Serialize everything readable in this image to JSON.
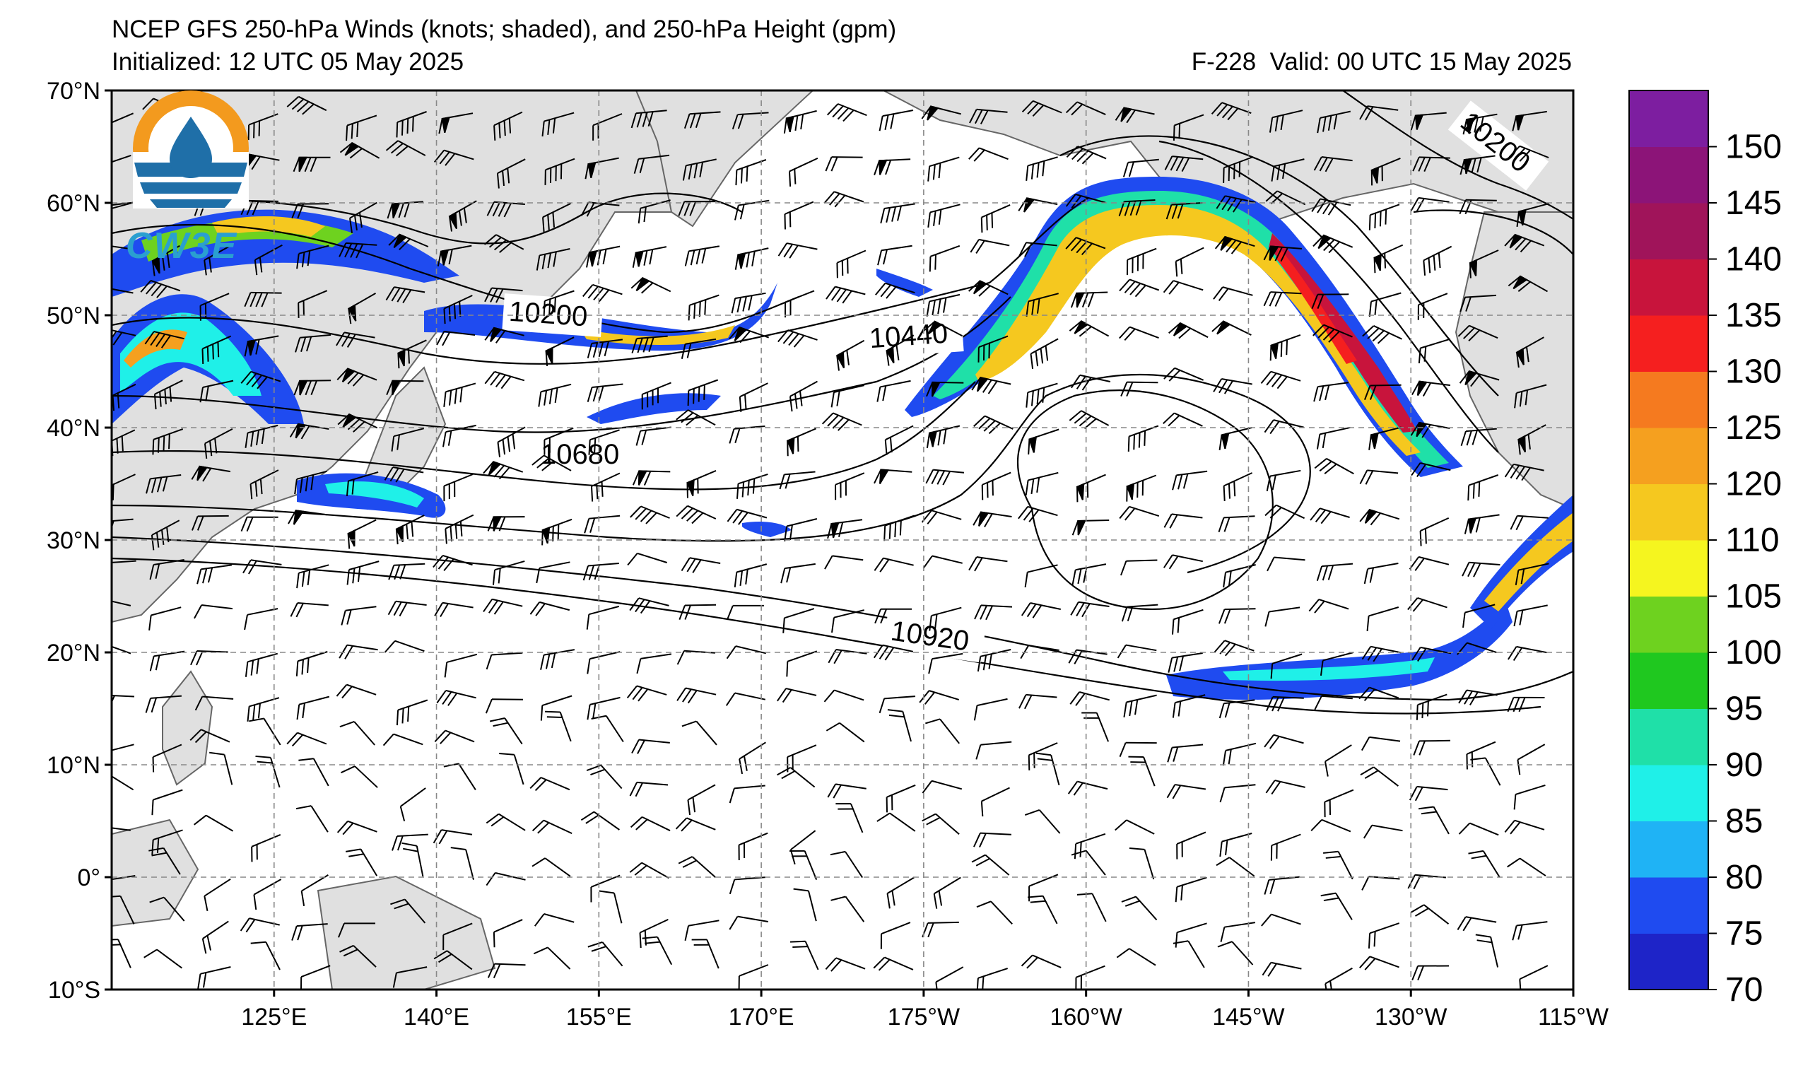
{
  "header": {
    "title": "NCEP GFS 250-hPa Winds (knots; shaded), and 250-hPa Height (gpm)",
    "initialized": "Initialized: 12 UTC 05 May 2025",
    "forecast_hour": "F-228",
    "valid": "Valid: 00 UTC 15 May 2025"
  },
  "logo": {
    "text": "CW3E",
    "icon": "water-drop-logo-icon"
  },
  "map": {
    "projection": "cylindrical",
    "lon_range": [
      110,
      245
    ],
    "lat_range": [
      -10,
      70
    ],
    "lon_ticks": [
      {
        "lon": 125,
        "label": "125°E"
      },
      {
        "lon": 140,
        "label": "140°E"
      },
      {
        "lon": 155,
        "label": "155°E"
      },
      {
        "lon": 170,
        "label": "170°E"
      },
      {
        "lon": 185,
        "label": "175°W"
      },
      {
        "lon": 200,
        "label": "160°W"
      },
      {
        "lon": 215,
        "label": "145°W"
      },
      {
        "lon": 230,
        "label": "130°W"
      },
      {
        "lon": 245,
        "label": "115°W"
      }
    ],
    "lat_ticks": [
      {
        "lat": 70,
        "label": "70°N"
      },
      {
        "lat": 60,
        "label": "60°N"
      },
      {
        "lat": 50,
        "label": "50°N"
      },
      {
        "lat": 40,
        "label": "40°N"
      },
      {
        "lat": 30,
        "label": "30°N"
      },
      {
        "lat": 20,
        "label": "20°N"
      },
      {
        "lat": 10,
        "label": "10°N"
      },
      {
        "lat": 0,
        "label": "0°"
      },
      {
        "lat": -10,
        "label": "10°S"
      }
    ],
    "contour_labels": [
      "10200",
      "10440",
      "10680",
      "10920",
      "10200"
    ],
    "gridlines": true,
    "land_color": "#e0e0e0",
    "coast_color": "#666666"
  },
  "colorbar": {
    "levels": [
      70,
      75,
      80,
      85,
      90,
      95,
      100,
      105,
      110,
      120,
      125,
      130,
      135,
      140,
      145,
      150
    ],
    "labels": [
      "70",
      "75",
      "80",
      "85",
      "90",
      "95",
      "100",
      "105",
      "110",
      "120",
      "125",
      "130",
      "135",
      "140",
      "145",
      "150"
    ],
    "colors": [
      "#1e24c8",
      "#1f4bf0",
      "#1fb3f5",
      "#1ff0e8",
      "#1fe0a8",
      "#1fc81f",
      "#6ed21f",
      "#f5f51f",
      "#f5c81f",
      "#f5a01f",
      "#f57a1f",
      "#f51f1f",
      "#c8143c",
      "#a0145a",
      "#8c1478",
      "#7d1ea0"
    ]
  }
}
